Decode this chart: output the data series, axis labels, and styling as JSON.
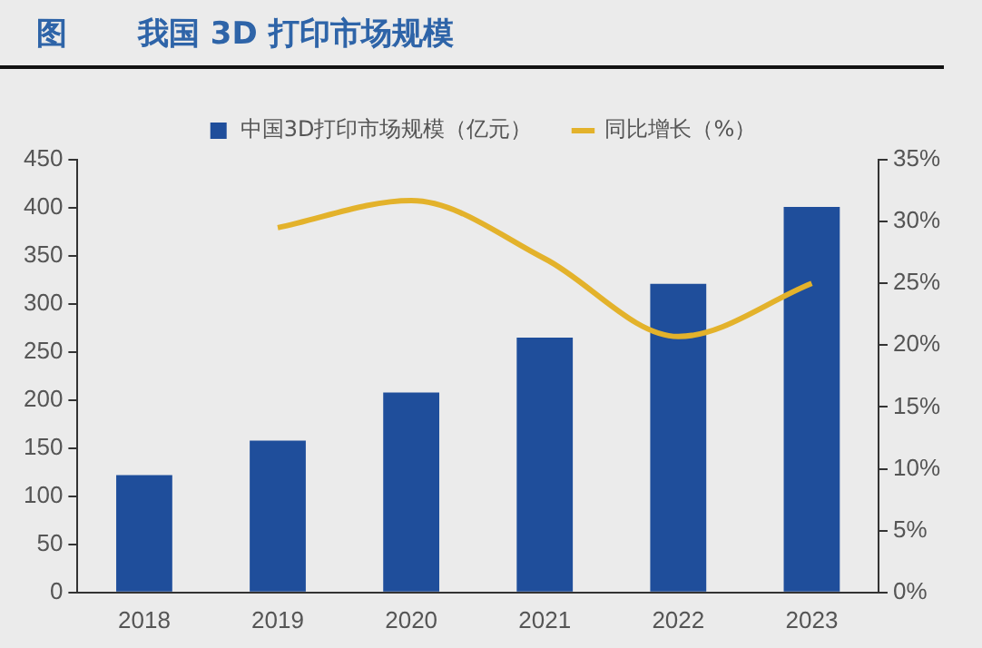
{
  "chart_data": {
    "type": "bar",
    "title": "我国 3D 打印市场规模",
    "annotations": [
      "图"
    ],
    "categories": [
      "2018",
      "2019",
      "2020",
      "2021",
      "2022",
      "2023"
    ],
    "series": [
      {
        "name": "中国3D打印市场规模（亿元）",
        "color": "#1f4e9b",
        "values": [
          122,
          158,
          208,
          265,
          321,
          401
        ]
      },
      {
        "name": "同比增长（%）",
        "type": "line",
        "axis": "y2",
        "color": "#e3b22b",
        "values": [
          null,
          29.5,
          31.7,
          27,
          20.7,
          25
        ]
      }
    ],
    "ylim": [
      0,
      450
    ],
    "yticks": [
      0,
      50,
      100,
      150,
      200,
      250,
      300,
      350,
      400,
      450
    ],
    "y2lim": [
      0,
      35
    ],
    "y2ticks": [
      {
        "value": 0,
        "label": "0%"
      },
      {
        "value": 5,
        "label": "5%"
      },
      {
        "value": 10,
        "label": "10%"
      },
      {
        "value": 15,
        "label": "15%"
      },
      {
        "value": 20,
        "label": "20%"
      },
      {
        "value": 25,
        "label": "25%"
      },
      {
        "value": 30,
        "label": "30%"
      },
      {
        "value": 35,
        "label": "35%"
      }
    ],
    "grid": false,
    "legend": "top",
    "marker": "none"
  }
}
